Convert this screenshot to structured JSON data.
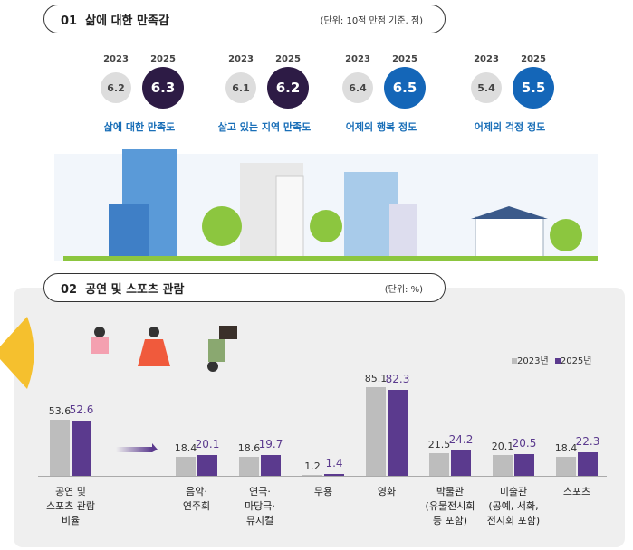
{
  "section1": {
    "number": "01",
    "title": "삶에 대한 만족감",
    "unit": "(단위: 10점 만점 기준, 점)",
    "items": [
      {
        "label": "삶에 대한 만족도",
        "y2023": "2023",
        "y2025": "2025",
        "v2023": "6.2",
        "v2025": "6.3",
        "color": "#2d1b45"
      },
      {
        "label": "살고 있는 지역 만족도",
        "y2023": "2023",
        "y2025": "2025",
        "v2023": "6.1",
        "v2025": "6.2",
        "color": "#2d1b45"
      },
      {
        "label": "어제의 행복 정도",
        "y2023": "2023",
        "y2025": "2025",
        "v2023": "6.4",
        "v2025": "6.5",
        "color": "#1466b8"
      },
      {
        "label": "어제의 걱정 정도",
        "y2023": "2023",
        "y2025": "2025",
        "v2023": "5.4",
        "v2025": "5.5",
        "color": "#1466b8"
      }
    ]
  },
  "section2": {
    "number": "02",
    "title": "공연 및 스포츠 관람",
    "unit": "(단위: %)"
  },
  "chart_data": {
    "type": "bar",
    "categories": [
      "공연 및\n스포츠 관람\n비율",
      "음악·\n연주회",
      "연극·\n마당극·\n뮤지컬",
      "무용",
      "영화",
      "박물관\n(유물전시회\n등 포함)",
      "미술관\n(공예, 서화,\n전시회 포함)",
      "스포츠"
    ],
    "series": [
      {
        "name": "2023년",
        "color": "#bdbdbd",
        "values": [
          53.6,
          18.4,
          18.6,
          1.2,
          85.1,
          21.5,
          20.1,
          18.4
        ]
      },
      {
        "name": "2025년",
        "color": "#5b3a8e",
        "values": [
          52.6,
          20.1,
          19.7,
          1.4,
          82.3,
          24.2,
          20.5,
          22.3
        ]
      }
    ],
    "legend": "top-right"
  }
}
